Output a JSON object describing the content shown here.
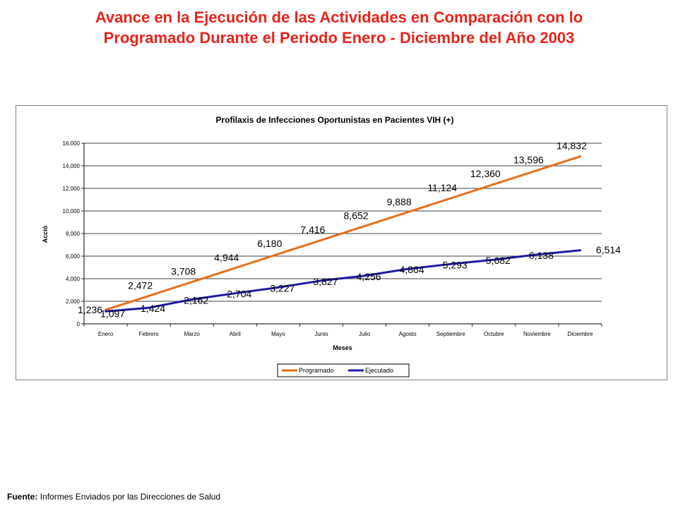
{
  "page": {
    "title_line1": "Avance en la Ejecución de las Actividades en Comparación con lo",
    "title_line2": "Programado Durante el Periodo Enero - Diciembre del Año 2003",
    "footer_label": "Fuente:",
    "footer_text": "Informes Enviados por las Direcciones de Salud"
  },
  "colors": {
    "programado": "#e46f1a",
    "ejecutado": "#1b1ba6",
    "title": "#e8231b"
  },
  "chart_data": {
    "type": "line",
    "title": "Profilaxis de Infecciones Oportunistas en Pacientes VIH (+)",
    "xlabel": "Meses",
    "ylabel": "Acció",
    "categories": [
      "Enero",
      "Febrero",
      "Marzo",
      "Abril",
      "Mayo",
      "Junio",
      "Julio",
      "Agosto",
      "Septiembre",
      "Octubre",
      "Noviembre",
      "Diciembre"
    ],
    "ylim": [
      0,
      16000
    ],
    "yticks": [
      0,
      2000,
      4000,
      6000,
      8000,
      10000,
      12000,
      14000,
      16000
    ],
    "ytick_labels": [
      "0",
      "2,000",
      "4,000",
      "6,000",
      "8,000",
      "10,000",
      "12,000",
      "14,000",
      "16,000"
    ],
    "grid": true,
    "legend_position": "bottom",
    "series": [
      {
        "name": "Programado",
        "values": [
          1236,
          2472,
          3708,
          4944,
          6180,
          7416,
          8652,
          9888,
          11124,
          12360,
          13596,
          14832
        ],
        "labels": [
          "1,236",
          "2,472",
          "3,708",
          "4,944",
          "6,180",
          "7,416",
          "8,652",
          "9,888",
          "11,124",
          "12,360",
          "13,596",
          "14,832"
        ]
      },
      {
        "name": "Ejecutado",
        "values": [
          1097,
          1424,
          2162,
          2704,
          3227,
          3827,
          4256,
          4864,
          5293,
          5682,
          6138,
          6514
        ],
        "labels": [
          "1,097",
          "1,424",
          "2,162",
          "2,704",
          "3,227",
          "3,827",
          "4,256",
          "4,864",
          "5,293",
          "5,682",
          "6,138",
          "6,514"
        ]
      }
    ]
  }
}
